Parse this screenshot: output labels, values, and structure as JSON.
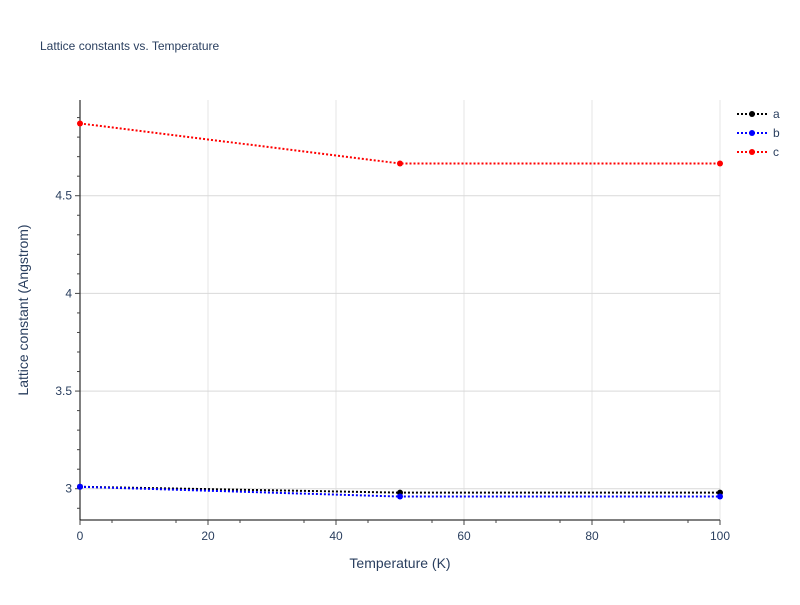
{
  "chart_data": {
    "type": "line",
    "title": "Lattice constants vs. Temperature",
    "xlabel": "Temperature (K)",
    "ylabel": "Lattice constant (Angstrom)",
    "xlim": [
      0,
      100
    ],
    "ylim": [
      2.84,
      4.99
    ],
    "xticks": [
      0,
      20,
      40,
      60,
      80,
      100
    ],
    "xtick_labels": [
      "0",
      "20",
      "40",
      "60",
      "80",
      "100"
    ],
    "yticks": [
      3,
      3.5,
      4,
      4.5
    ],
    "ytick_labels": [
      "3",
      "3.5",
      "4",
      "4.5"
    ],
    "grid": true,
    "legend_position": "top-right",
    "line_style": "dotted with markers",
    "series": [
      {
        "name": "a",
        "color": "#000000",
        "x": [
          0,
          50,
          100
        ],
        "y": [
          3.01,
          2.98,
          2.98
        ]
      },
      {
        "name": "b",
        "color": "#0000ff",
        "x": [
          0,
          50,
          100
        ],
        "y": [
          3.01,
          2.96,
          2.96
        ]
      },
      {
        "name": "c",
        "color": "#ff0000",
        "x": [
          0,
          50,
          100
        ],
        "y": [
          4.87,
          4.665,
          4.665
        ]
      }
    ]
  }
}
